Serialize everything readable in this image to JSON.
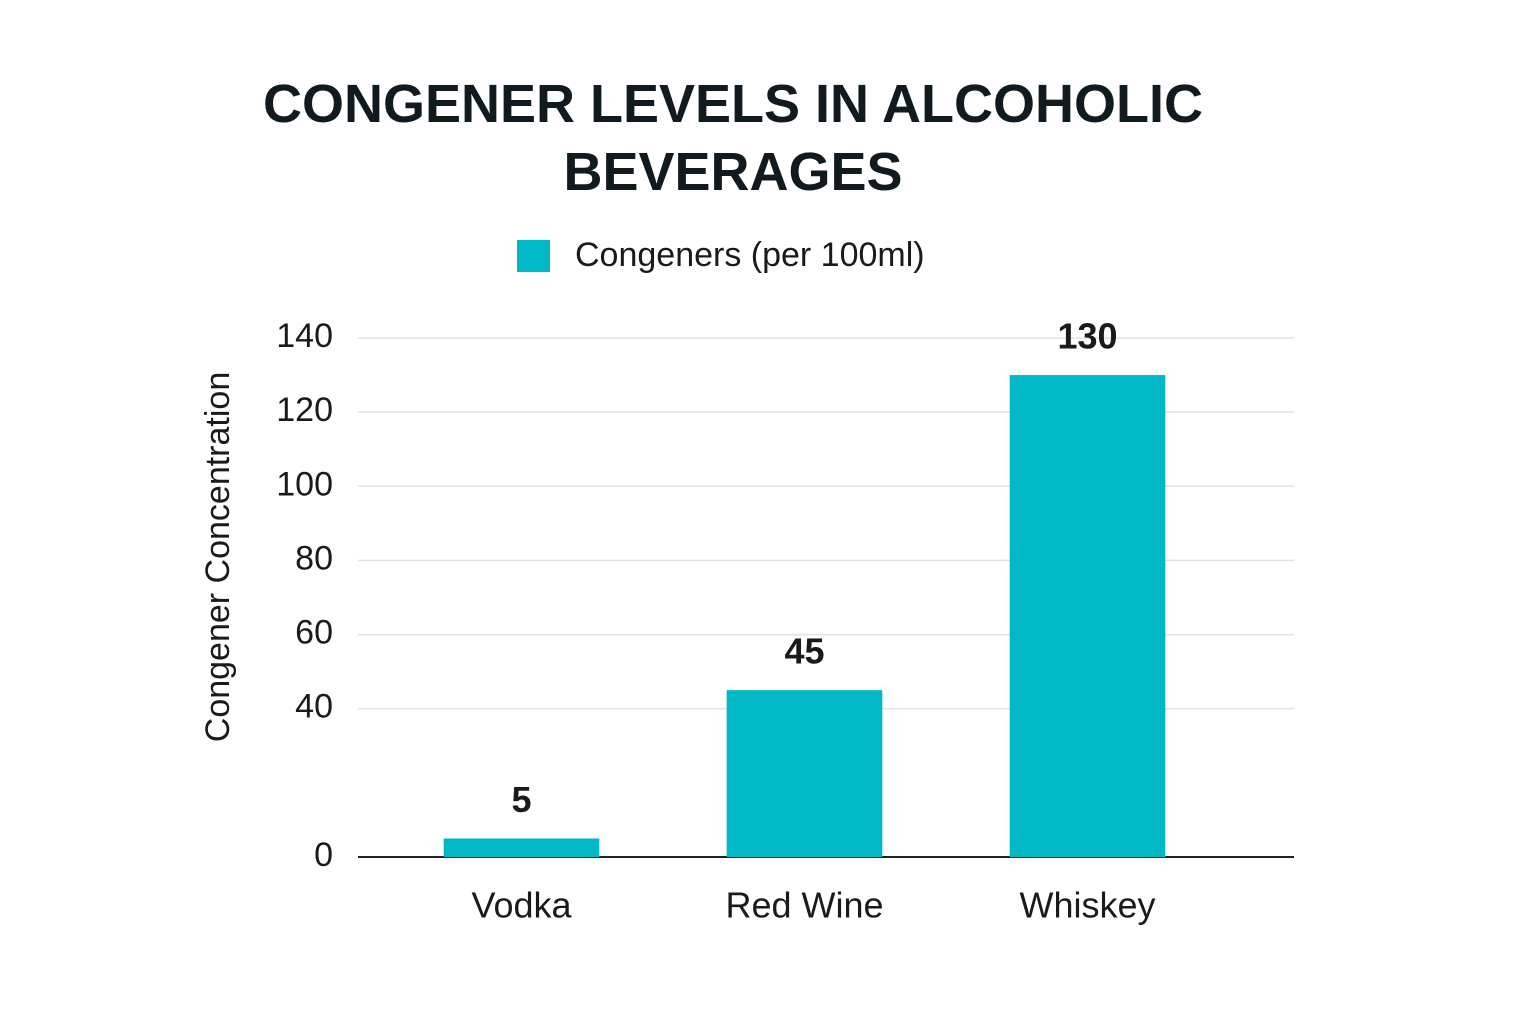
{
  "chart_data": {
    "type": "bar",
    "title": "CONGENER LEVELS IN ALCOHOLIC BEVERAGES",
    "y_label": "Congener Concentration",
    "categories": [
      "Vodka",
      "Red Wine",
      "Whiskey"
    ],
    "series": [
      {
        "name": "Congeners (per 100ml)",
        "color": "#00b8c6",
        "values": [
          5,
          45,
          130
        ]
      }
    ],
    "ylim": [
      0,
      140
    ],
    "yticks": [
      0,
      40,
      60,
      80,
      100,
      120,
      140
    ],
    "grid": true,
    "legend": "top"
  }
}
